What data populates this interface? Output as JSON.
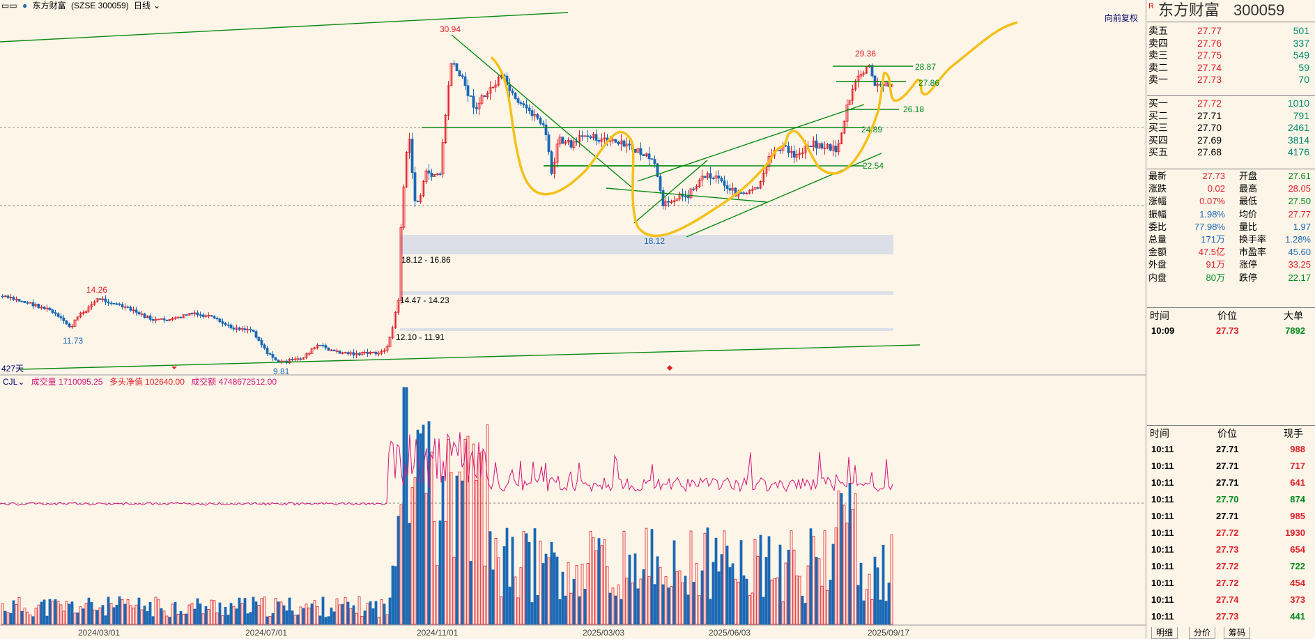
{
  "top_bar": {
    "stock_name": "东方财富",
    "code_label": "(SZSE 300059)",
    "period": "日线",
    "restore_button": "向前复权"
  },
  "chart": {
    "peak_labels": [
      "30.94",
      "29.36",
      "14.26",
      "11.73",
      "9.81",
      "18.12"
    ],
    "level_labels": [
      "28.87",
      "27.86",
      "26.18",
      "24.89",
      "22.54"
    ],
    "gap_labels": [
      "18.12 - 16.86",
      "14.47 - 14.23",
      "12.10 - 11.91"
    ],
    "days_label": "427天",
    "date_ticks": [
      "2024/03/01",
      "2024/07/01",
      "2024/11/01",
      "2025/03/03",
      "2025/06/03",
      "2025/09/17"
    ]
  },
  "volume_header": {
    "indicator": "CJL",
    "vol_label": "成交量 1710095.25",
    "net_label": "多头净值 102640.00",
    "amount_label": "成交额 4748672512.00"
  },
  "quote": {
    "name": "东方财富",
    "code": "300059",
    "asks": [
      {
        "label": "卖五",
        "price": "27.77",
        "vol": "501"
      },
      {
        "label": "卖四",
        "price": "27.76",
        "vol": "337"
      },
      {
        "label": "卖三",
        "price": "27.75",
        "vol": "549"
      },
      {
        "label": "卖二",
        "price": "27.74",
        "vol": "59"
      },
      {
        "label": "卖一",
        "price": "27.73",
        "vol": "70"
      }
    ],
    "bids": [
      {
        "label": "买一",
        "price": "27.72",
        "vol": "1010"
      },
      {
        "label": "买二",
        "price": "27.71",
        "vol": "791"
      },
      {
        "label": "买三",
        "price": "27.70",
        "vol": "2461"
      },
      {
        "label": "买四",
        "price": "27.69",
        "vol": "3814"
      },
      {
        "label": "买五",
        "price": "27.68",
        "vol": "4176"
      }
    ],
    "stats": [
      {
        "l1": "最新",
        "v1": "27.73",
        "c1": "red",
        "l2": "开盘",
        "v2": "27.61",
        "c2": "green"
      },
      {
        "l1": "涨跌",
        "v1": "0.02",
        "c1": "red",
        "l2": "最高",
        "v2": "28.05",
        "c2": "red"
      },
      {
        "l1": "涨幅",
        "v1": "0.07%",
        "c1": "red",
        "l2": "最低",
        "v2": "27.50",
        "c2": "green"
      },
      {
        "l1": "振幅",
        "v1": "1.98%",
        "c1": "blue",
        "l2": "均价",
        "v2": "27.77",
        "c2": "red"
      },
      {
        "l1": "委比",
        "v1": "77.98%",
        "c1": "blue",
        "l2": "量比",
        "v2": "1.97",
        "c2": "blue"
      },
      {
        "l1": "总量",
        "v1": "171万",
        "c1": "blue",
        "l2": "换手率",
        "v2": "1.28%",
        "c2": "blue"
      },
      {
        "l1": "金额",
        "v1": "47.5亿",
        "c1": "red",
        "l2": "市盈率",
        "v2": "45.60",
        "c2": "blue"
      },
      {
        "l1": "外盘",
        "v1": "91万",
        "c1": "red",
        "l2": "涨停",
        "v2": "33.25",
        "c2": "red"
      },
      {
        "l1": "内盘",
        "v1": "80万",
        "c1": "green",
        "l2": "跌停",
        "v2": "22.17",
        "c2": "green"
      }
    ],
    "big_order_header": {
      "time": "时间",
      "price": "价位",
      "vol": "大单"
    },
    "big_orders": [
      {
        "time": "10:09",
        "price": "27.73",
        "vol": "7892"
      }
    ],
    "trade_header": {
      "time": "时间",
      "price": "价位",
      "vol": "现手"
    },
    "trades": [
      {
        "time": "10:11",
        "price": "27.71",
        "vol": "988",
        "c": "red"
      },
      {
        "time": "10:11",
        "price": "27.71",
        "vol": "717",
        "c": "red"
      },
      {
        "time": "10:11",
        "price": "27.71",
        "vol": "641",
        "c": "red"
      },
      {
        "time": "10:11",
        "price": "27.70",
        "vol": "874",
        "c": "green"
      },
      {
        "time": "10:11",
        "price": "27.71",
        "vol": "985",
        "c": "red"
      },
      {
        "time": "10:11",
        "price": "27.72",
        "vol": "1930",
        "c": "red"
      },
      {
        "time": "10:11",
        "price": "27.73",
        "vol": "654",
        "c": "red"
      },
      {
        "time": "10:11",
        "price": "27.72",
        "vol": "722",
        "c": "green"
      },
      {
        "time": "10:11",
        "price": "27.72",
        "vol": "454",
        "c": "red"
      },
      {
        "time": "10:11",
        "price": "27.74",
        "vol": "373",
        "c": "red"
      },
      {
        "time": "10:11",
        "price": "27.73",
        "vol": "441",
        "c": "green"
      }
    ],
    "tabs": [
      "明细",
      "分价",
      "筹码"
    ]
  },
  "colors": {
    "up": "#e0202a",
    "down": "#1a69b5",
    "trend": "#0a8a14",
    "annotation": "#f5c01a",
    "bg": "#fdf5e8"
  }
}
